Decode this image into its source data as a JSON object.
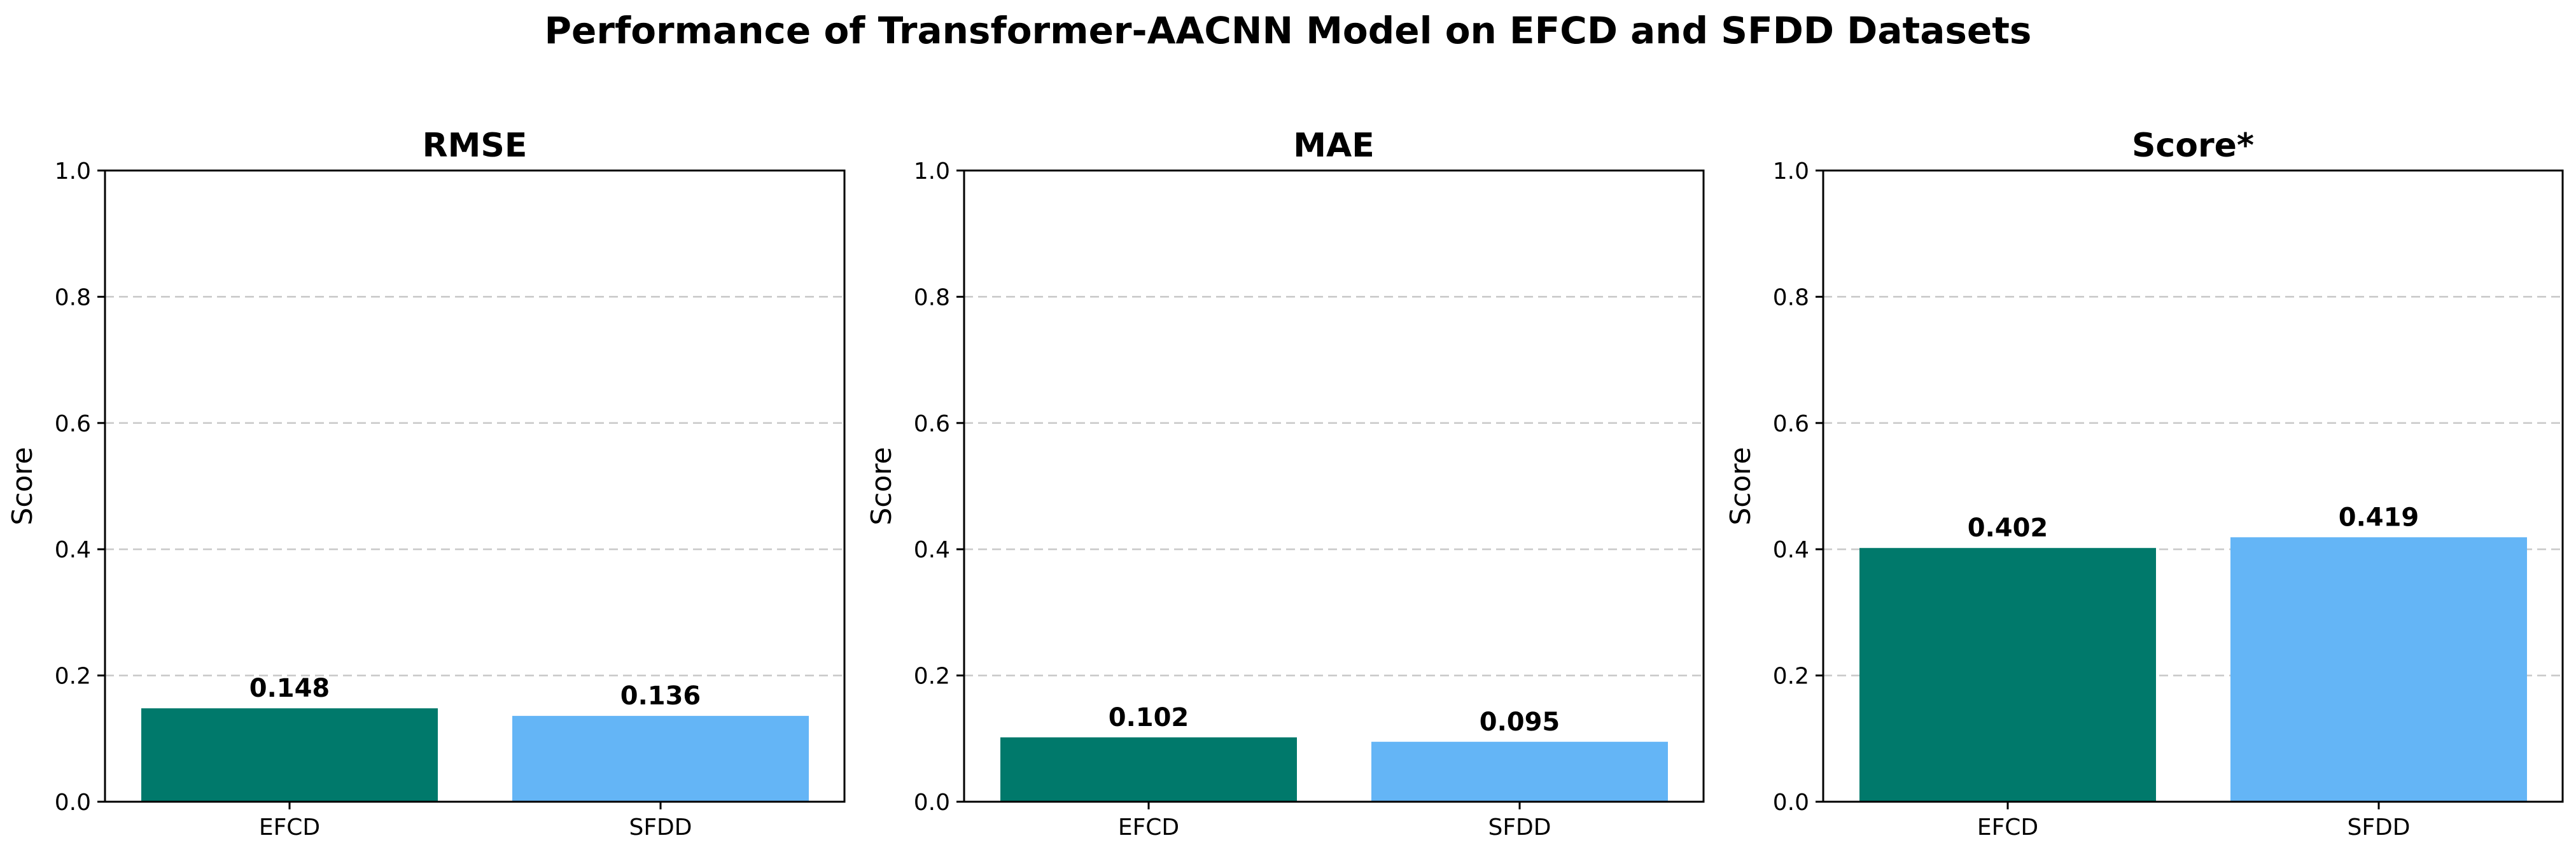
{
  "chart_data": {
    "type": "bar",
    "title": "Performance of Transformer-AACNN Model on EFCD and SFDD Datasets",
    "colors": {
      "EFCD": "#00796b",
      "SFDD": "#64b5f6"
    },
    "panels": [
      {
        "title": "RMSE",
        "categories": [
          "EFCD",
          "SFDD"
        ],
        "values": [
          0.148,
          0.136
        ],
        "value_labels": [
          "0.148",
          "0.136"
        ],
        "ylabel": "Score",
        "ylim": [
          0,
          1.0
        ],
        "yticks": [
          0.0,
          0.2,
          0.4,
          0.6,
          0.8,
          1.0
        ],
        "ytick_labels": [
          "0.0",
          "0.2",
          "0.4",
          "0.6",
          "0.8",
          "1.0"
        ],
        "grid": "y-dashed"
      },
      {
        "title": "MAE",
        "categories": [
          "EFCD",
          "SFDD"
        ],
        "values": [
          0.102,
          0.095
        ],
        "value_labels": [
          "0.102",
          "0.095"
        ],
        "ylabel": "Score",
        "ylim": [
          0,
          1.0
        ],
        "yticks": [
          0.0,
          0.2,
          0.4,
          0.6,
          0.8,
          1.0
        ],
        "ytick_labels": [
          "0.0",
          "0.2",
          "0.4",
          "0.6",
          "0.8",
          "1.0"
        ],
        "grid": "y-dashed"
      },
      {
        "title": "Score*",
        "categories": [
          "EFCD",
          "SFDD"
        ],
        "values": [
          0.402,
          0.419
        ],
        "value_labels": [
          "0.402",
          "0.419"
        ],
        "ylabel": "Score",
        "ylim": [
          0,
          1.0
        ],
        "yticks": [
          0.0,
          0.2,
          0.4,
          0.6,
          0.8,
          1.0
        ],
        "ytick_labels": [
          "0.0",
          "0.2",
          "0.4",
          "0.6",
          "0.8",
          "1.0"
        ],
        "grid": "y-dashed"
      }
    ]
  }
}
